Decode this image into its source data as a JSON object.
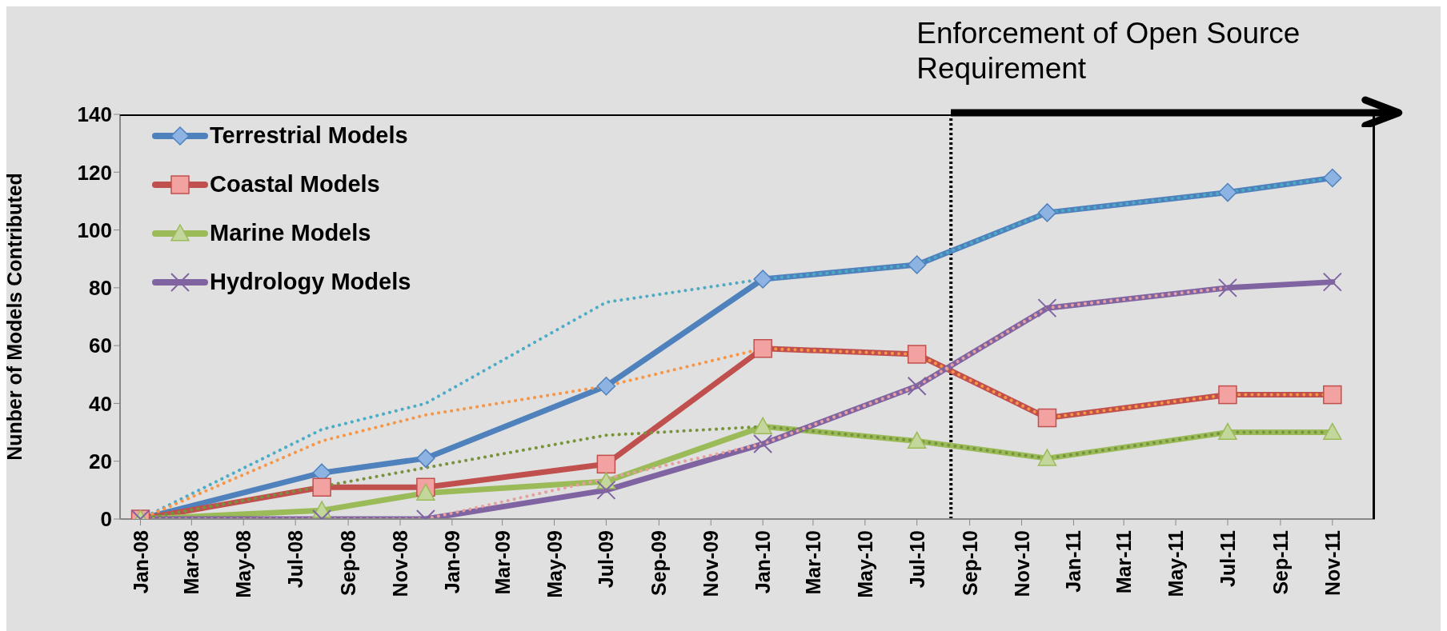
{
  "chart_data": {
    "type": "line",
    "ylabel": "Nunber of Models Contributed",
    "x": [
      "2008-01",
      "2008-08",
      "2008-12",
      "2009-07",
      "2010-01",
      "2010-07",
      "2010-12",
      "2011-07",
      "2011-11"
    ],
    "series": [
      {
        "name": "Terrestrial Models",
        "color": "#4f81bd",
        "marker": "diamond",
        "line_style": "solid",
        "values": [
          0,
          16,
          21,
          46,
          83,
          88,
          106,
          113,
          118
        ]
      },
      {
        "name": "Coastal Models",
        "color": "#c0504d",
        "marker": "square",
        "line_style": "solid",
        "values": [
          0,
          11,
          11,
          19,
          59,
          57,
          35,
          43,
          43
        ]
      },
      {
        "name": "Marine Models",
        "color": "#9bbb59",
        "marker": "triangle",
        "line_style": "solid",
        "values": [
          0,
          3,
          9,
          13,
          32,
          27,
          21,
          30,
          30
        ]
      },
      {
        "name": "Hydrology Models",
        "color": "#8064a2",
        "marker": "cross",
        "line_style": "solid",
        "values": [
          0,
          0,
          0,
          10,
          26,
          46,
          73,
          80,
          82
        ]
      },
      {
        "color": "#4bacc6",
        "line_style": "dotted",
        "values": [
          0,
          31,
          40,
          75,
          83,
          88,
          106,
          113,
          118
        ]
      },
      {
        "color": "#f79646",
        "line_style": "dotted",
        "values": [
          0,
          27,
          36,
          46,
          59,
          57,
          35,
          43,
          43
        ]
      },
      {
        "color": "#77933c",
        "line_style": "dotted",
        "values": [
          0,
          null,
          null,
          29,
          32,
          27,
          21,
          30,
          30
        ]
      },
      {
        "color": "#e6a0a0",
        "line_style": "dotted",
        "values": [
          0,
          0,
          0,
          14,
          26,
          46,
          73,
          80,
          null
        ]
      }
    ],
    "xlim": [
      "2007-12-08",
      "2011-12-21"
    ],
    "xticks": [
      {
        "value": "2008-01",
        "label": "Jan-08"
      },
      {
        "value": "2008-03",
        "label": "Mar-08"
      },
      {
        "value": "2008-05",
        "label": "May-08"
      },
      {
        "value": "2008-07",
        "label": "Jul-08"
      },
      {
        "value": "2008-09",
        "label": "Sep-08"
      },
      {
        "value": "2008-11",
        "label": "Nov-08"
      },
      {
        "value": "2009-01",
        "label": "Jan-09"
      },
      {
        "value": "2009-03",
        "label": "Mar-09"
      },
      {
        "value": "2009-05",
        "label": "May-09"
      },
      {
        "value": "2009-07",
        "label": "Jul-09"
      },
      {
        "value": "2009-09",
        "label": "Sep-09"
      },
      {
        "value": "2009-11",
        "label": "Nov-09"
      },
      {
        "value": "2010-01",
        "label": "Jan-10"
      },
      {
        "value": "2010-03",
        "label": "Mar-10"
      },
      {
        "value": "2010-05",
        "label": "May-10"
      },
      {
        "value": "2010-07",
        "label": "Jul-10"
      },
      {
        "value": "2010-09",
        "label": "Sep-10"
      },
      {
        "value": "2010-11",
        "label": "Nov-10"
      },
      {
        "value": "2011-01",
        "label": "Jan-11"
      },
      {
        "value": "2011-03",
        "label": "Mar-11"
      },
      {
        "value": "2011-05",
        "label": "May-11"
      },
      {
        "value": "2011-07",
        "label": "Jul-11"
      },
      {
        "value": "2011-09",
        "label": "Sep-11"
      },
      {
        "value": "2011-11",
        "label": "Nov-11"
      }
    ],
    "ylim": [
      0,
      140
    ],
    "yticks": [
      0,
      20,
      40,
      60,
      80,
      100,
      120,
      140
    ],
    "ref_lines": [
      {
        "axis": "x",
        "value": "2010-08-10",
        "label": "Enforcement of Open Source Requirement",
        "color": "#000000",
        "line_style": "dotted"
      }
    ],
    "grid": false,
    "legend": "top left"
  }
}
